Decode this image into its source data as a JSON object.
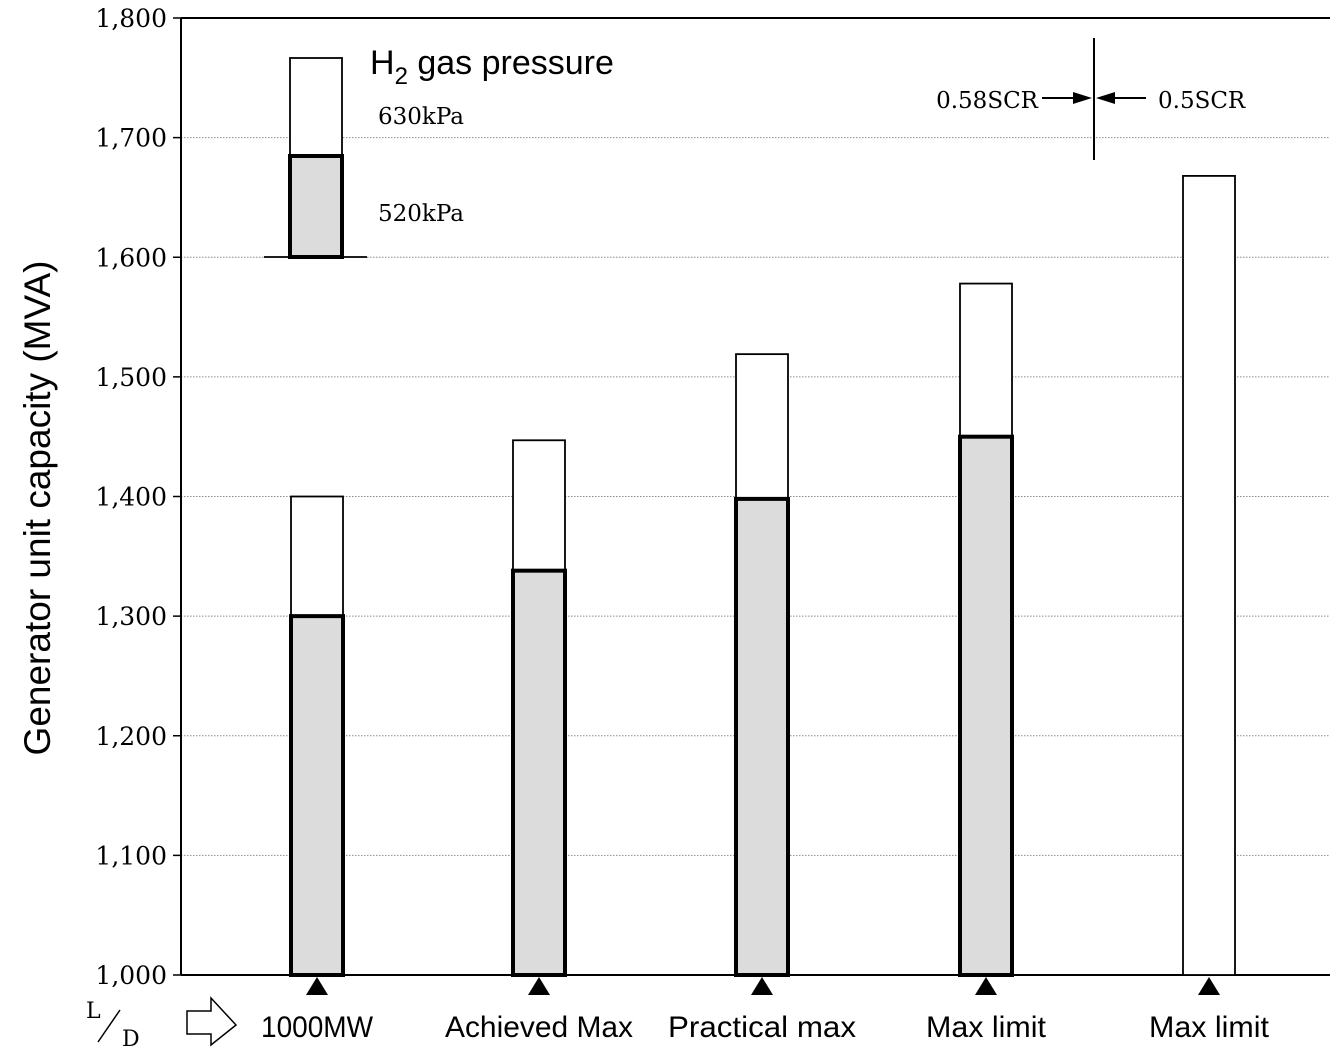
{
  "chart_data": {
    "type": "bar",
    "ylabel": "Generator unit capacity (MVA)",
    "ylim": [
      1000,
      1800
    ],
    "yticks": [
      "1,000",
      "1,100",
      "1,200",
      "1,300",
      "1,400",
      "1,500",
      "1,600",
      "1,700",
      "1,800"
    ],
    "grid": true,
    "categories": [
      "1000MW",
      "Achieved Max",
      "Practical max",
      "Max limit",
      "Max limit"
    ],
    "series": [
      {
        "name": "520kPa",
        "values": [
          1300,
          1338,
          1398,
          1450,
          null
        ]
      },
      {
        "name": "630kPa",
        "values": [
          1400,
          1447,
          1519,
          1578,
          1668
        ]
      }
    ],
    "legend": {
      "title_main": "H",
      "title_sub": "2",
      "title_rest": " gas pressure",
      "placement": "top-left"
    },
    "scr_annotation": {
      "left": "0.58SCR",
      "right": "0.5SCR"
    },
    "x_axis_label": {
      "top": "L",
      "bottom": "D"
    }
  },
  "colors": {
    "fill_520": "#dcdcdc",
    "fill_630": "#ffffff",
    "stroke": "#000000",
    "grid": "#8a8a8a"
  }
}
